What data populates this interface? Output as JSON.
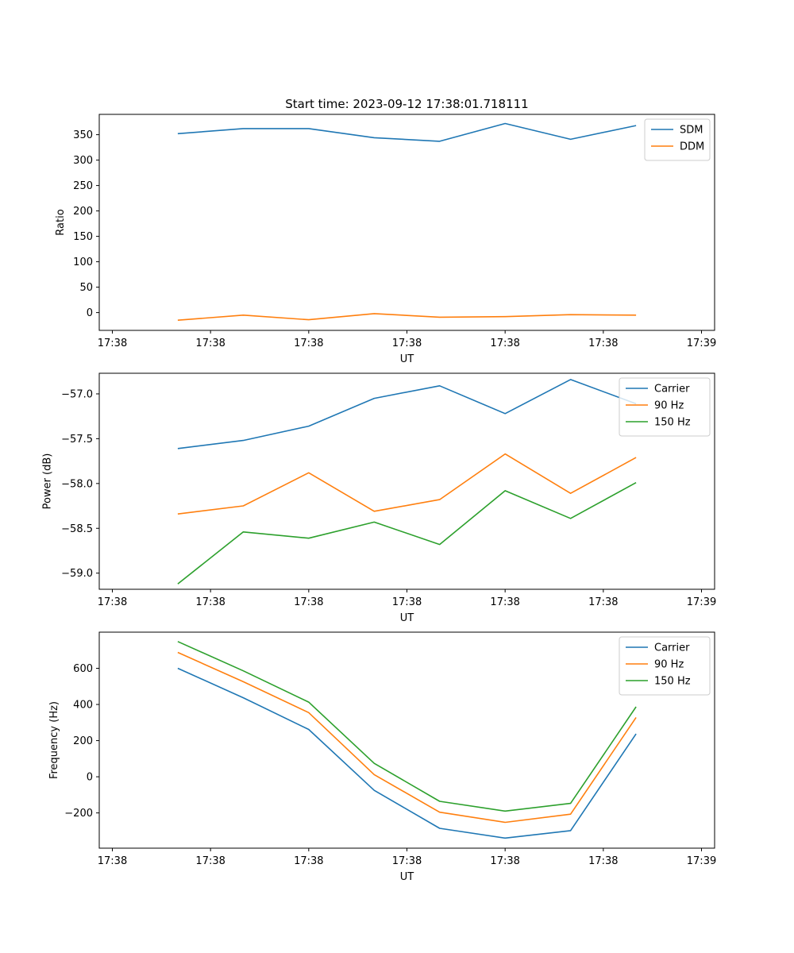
{
  "figure": {
    "title": "Start time: 2023-09-12 17:38:01.718111",
    "colors": {
      "c0": "#1f77b4",
      "c1": "#ff7f0e",
      "c2": "#2ca02c"
    }
  },
  "chart_data": [
    {
      "type": "line",
      "title": "Start time: 2023-09-12 17:38:01.718111",
      "xlabel": "UT",
      "ylabel": "Ratio",
      "x": [
        0.5,
        1.0,
        1.5,
        2.0,
        2.5,
        3.0,
        3.5,
        4.0
      ],
      "xlim": [
        -0.1,
        4.6
      ],
      "xticks": [
        0,
        0.75,
        1.5,
        2.25,
        3.0,
        3.75,
        4.5
      ],
      "xtick_labels": [
        "17:38",
        "17:38",
        "17:38",
        "17:38",
        "17:38",
        "17:38",
        "17:39"
      ],
      "ylim": [
        -35,
        390
      ],
      "yticks": [
        0,
        50,
        100,
        150,
        200,
        250,
        300,
        350
      ],
      "ytick_labels": [
        "0",
        "50",
        "100",
        "150",
        "200",
        "250",
        "300",
        "350"
      ],
      "legend": "top-right",
      "series": [
        {
          "name": "SDM",
          "color": "#1f77b4",
          "values": [
            352,
            362,
            362,
            344,
            337,
            372,
            341,
            368
          ]
        },
        {
          "name": "DDM",
          "color": "#ff7f0e",
          "values": [
            -15,
            -5,
            -14,
            -2,
            -9,
            -8,
            -4,
            -5
          ]
        }
      ]
    },
    {
      "type": "line",
      "xlabel": "UT",
      "ylabel": "Power (dB)",
      "x": [
        0.5,
        1.0,
        1.5,
        2.0,
        2.5,
        3.0,
        3.5,
        4.0
      ],
      "xlim": [
        -0.1,
        4.6
      ],
      "xticks": [
        0,
        0.75,
        1.5,
        2.25,
        3.0,
        3.75,
        4.5
      ],
      "xtick_labels": [
        "17:38",
        "17:38",
        "17:38",
        "17:38",
        "17:38",
        "17:38",
        "17:39"
      ],
      "ylim": [
        -59.18,
        -56.77
      ],
      "yticks": [
        -59.0,
        -58.5,
        -58.0,
        -57.5,
        -57.0
      ],
      "ytick_labels": [
        "−59.0",
        "−58.5",
        "−58.0",
        "−57.5",
        "−57.0"
      ],
      "legend": "top-right",
      "series": [
        {
          "name": "Carrier",
          "color": "#1f77b4",
          "values": [
            -57.61,
            -57.52,
            -57.36,
            -57.05,
            -56.91,
            -57.22,
            -56.84,
            -57.11
          ]
        },
        {
          "name": "90 Hz",
          "color": "#ff7f0e",
          "values": [
            -58.34,
            -58.25,
            -57.88,
            -58.31,
            -58.18,
            -57.67,
            -58.11,
            -57.71
          ]
        },
        {
          "name": "150 Hz",
          "color": "#2ca02c",
          "values": [
            -59.12,
            -58.54,
            -58.61,
            -58.43,
            -58.68,
            -58.08,
            -58.39,
            -57.99
          ]
        }
      ]
    },
    {
      "type": "line",
      "xlabel": "UT",
      "ylabel": "Frequency (Hz)",
      "x": [
        0.5,
        1.0,
        1.5,
        2.0,
        2.5,
        3.0,
        3.5,
        4.0
      ],
      "xlim": [
        -0.1,
        4.6
      ],
      "xticks": [
        0,
        0.75,
        1.5,
        2.25,
        3.0,
        3.75,
        4.5
      ],
      "xtick_labels": [
        "17:38",
        "17:38",
        "17:38",
        "17:38",
        "17:38",
        "17:38",
        "17:39"
      ],
      "ylim": [
        -395,
        800
      ],
      "yticks": [
        -200,
        0,
        200,
        400,
        600
      ],
      "ytick_labels": [
        "−200",
        "0",
        "200",
        "400",
        "600"
      ],
      "legend": "top-right",
      "series": [
        {
          "name": "Carrier",
          "color": "#1f77b4",
          "values": [
            600,
            437,
            262,
            -75,
            -285,
            -339,
            -298,
            237
          ]
        },
        {
          "name": "90 Hz",
          "color": "#ff7f0e",
          "values": [
            688,
            526,
            355,
            12,
            -196,
            -252,
            -207,
            328
          ]
        },
        {
          "name": "150 Hz",
          "color": "#2ca02c",
          "values": [
            748,
            586,
            413,
            74,
            -136,
            -190,
            -147,
            387
          ]
        }
      ]
    }
  ]
}
